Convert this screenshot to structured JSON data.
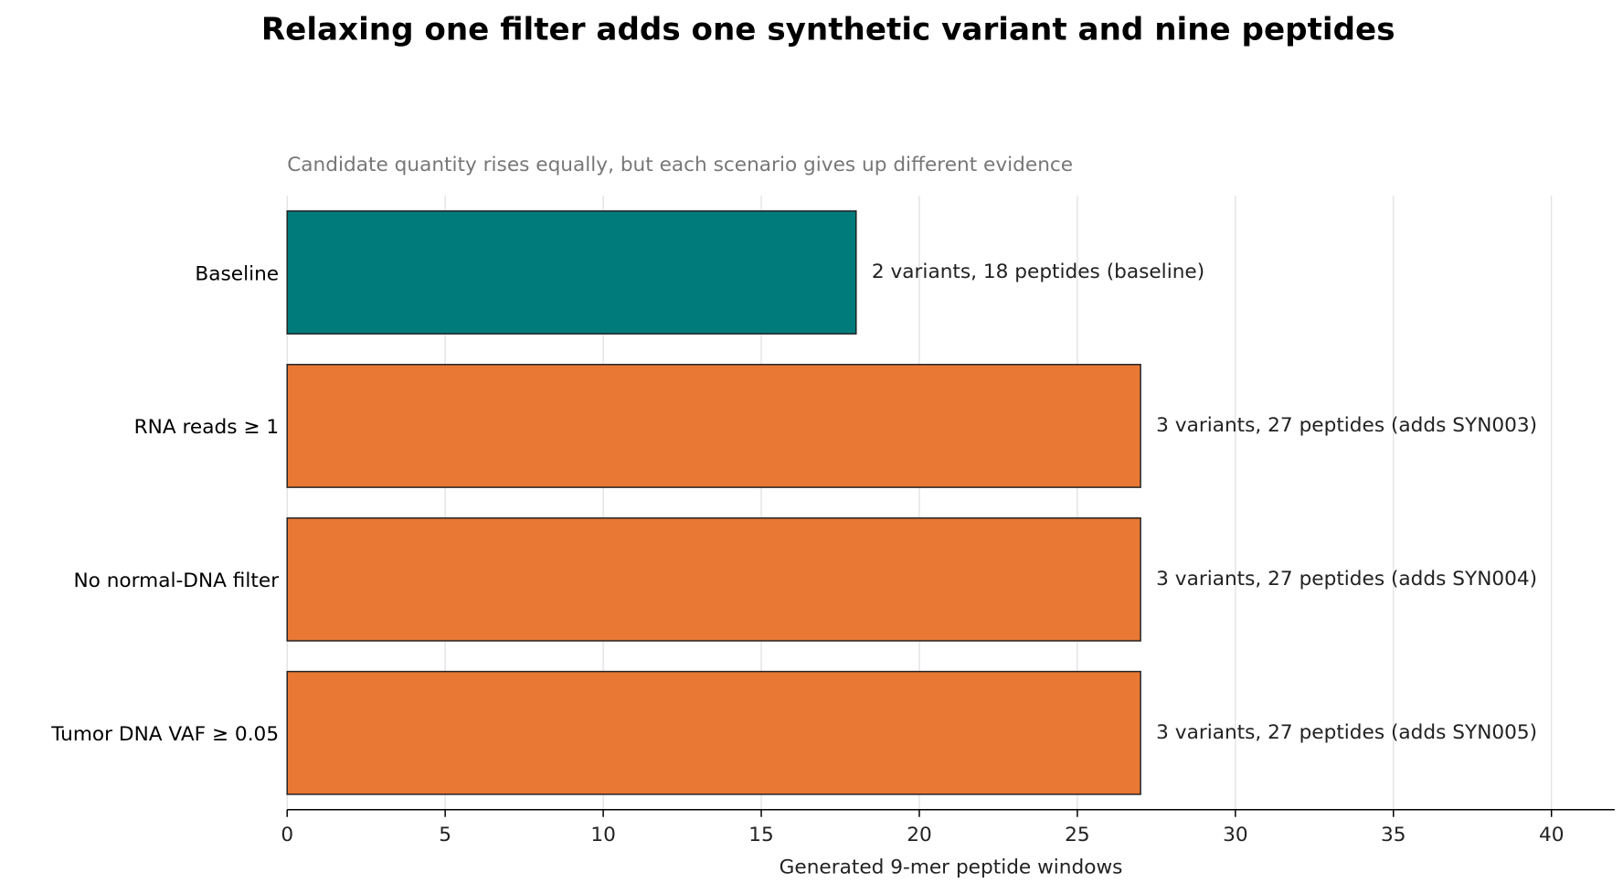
{
  "chart_data": {
    "type": "barh",
    "title": "Relaxing one filter adds one synthetic variant and nine peptides",
    "subtitle": "Candidate quantity rises equally, but each scenario gives up different evidence",
    "x_label": "Generated 9-mer peptide windows",
    "categories": [
      "Baseline",
      "RNA reads ≥ 1",
      "No normal-DNA filter",
      "Tumor DNA VAF ≥ 0.05"
    ],
    "values": [
      18,
      27,
      27,
      27
    ],
    "value_labels": [
      "2 variants, 18 peptides (baseline)",
      "3 variants, 27 peptides (adds SYN003)",
      "3 variants, 27 peptides (adds SYN004)",
      "3 variants, 27 peptides (adds SYN005)"
    ],
    "colors": [
      "#007b7b",
      "#e87834",
      "#e87834",
      "#e87834"
    ],
    "xlim": [
      0,
      42
    ],
    "xticks": [
      0,
      5,
      10,
      15,
      20,
      25,
      30,
      35,
      40
    ],
    "grid": true
  }
}
